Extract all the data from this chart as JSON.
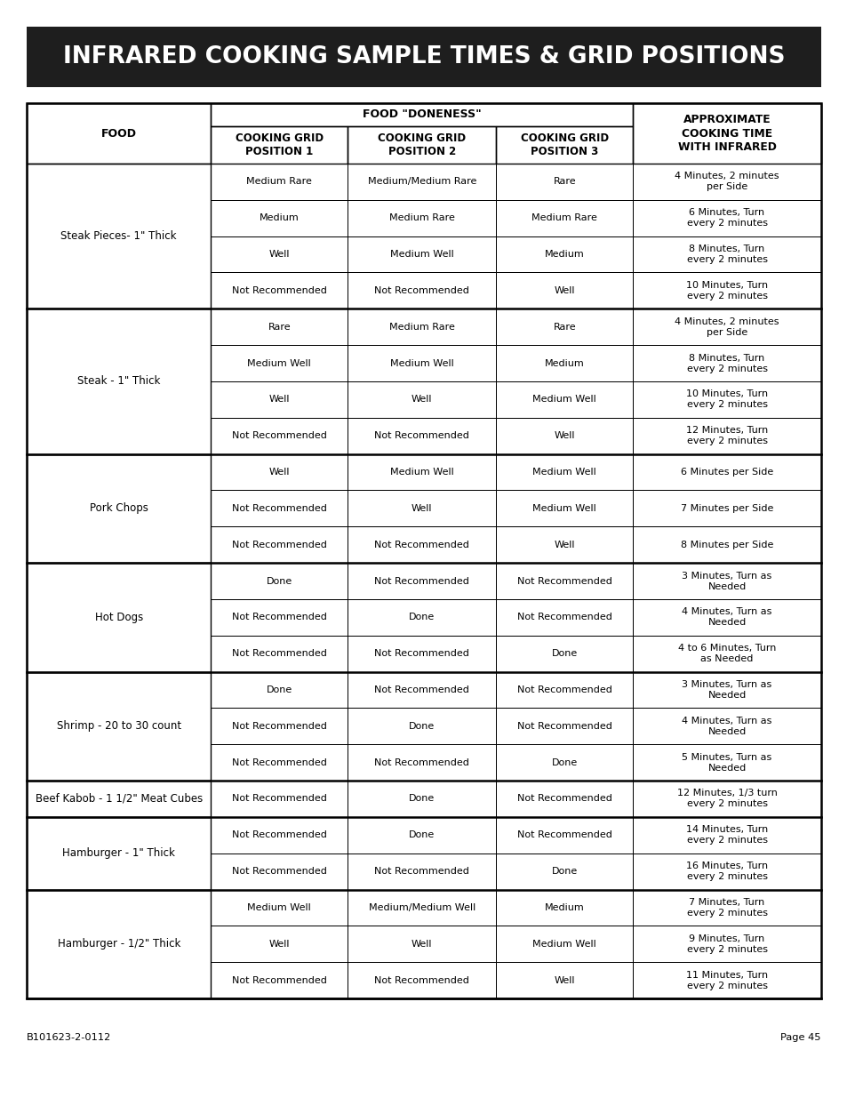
{
  "title": "INFRARED COOKING SAMPLE TIMES & GRID POSITIONS",
  "title_bg": "#1e1e1e",
  "title_color": "#ffffff",
  "header_food": "FOOD",
  "header_doneness": "FOOD \"DONENESS\"",
  "header_approx": "APPROXIMATE\nCOOKING TIME\nWITH INFRARED",
  "col_headers": [
    "COOKING GRID\nPOSITION 1",
    "COOKING GRID\nPOSITION 2",
    "COOKING GRID\nPOSITION 3"
  ],
  "footer_left": "B101623-2-0112",
  "footer_right": "Page 45",
  "groups": [
    {
      "food": "Steak Pieces- 1\" Thick",
      "rows": [
        [
          "Medium Rare",
          "Medium/Medium Rare",
          "Rare",
          "4 Minutes, 2 minutes\nper Side"
        ],
        [
          "Medium",
          "Medium Rare",
          "Medium Rare",
          "6 Minutes, Turn\nevery 2 minutes"
        ],
        [
          "Well",
          "Medium Well",
          "Medium",
          "8 Minutes, Turn\nevery 2 minutes"
        ],
        [
          "Not Recommended",
          "Not Recommended",
          "Well",
          "10 Minutes, Turn\nevery 2 minutes"
        ]
      ]
    },
    {
      "food": "Steak - 1\" Thick",
      "rows": [
        [
          "Rare",
          "Medium Rare",
          "Rare",
          "4 Minutes, 2 minutes\nper Side"
        ],
        [
          "Medium Well",
          "Medium Well",
          "Medium",
          "8 Minutes, Turn\nevery 2 minutes"
        ],
        [
          "Well",
          "Well",
          "Medium Well",
          "10 Minutes, Turn\nevery 2 minutes"
        ],
        [
          "Not Recommended",
          "Not Recommended",
          "Well",
          "12 Minutes, Turn\nevery 2 minutes"
        ]
      ]
    },
    {
      "food": "Pork Chops",
      "rows": [
        [
          "Well",
          "Medium Well",
          "Medium Well",
          "6 Minutes per Side"
        ],
        [
          "Not Recommended",
          "Well",
          "Medium Well",
          "7 Minutes per Side"
        ],
        [
          "Not Recommended",
          "Not Recommended",
          "Well",
          "8 Minutes per Side"
        ]
      ]
    },
    {
      "food": "Hot Dogs",
      "rows": [
        [
          "Done",
          "Not Recommended",
          "Not Recommended",
          "3 Minutes, Turn as\nNeeded"
        ],
        [
          "Not Recommended",
          "Done",
          "Not Recommended",
          "4 Minutes, Turn as\nNeeded"
        ],
        [
          "Not Recommended",
          "Not Recommended",
          "Done",
          "4 to 6 Minutes, Turn\nas Needed"
        ]
      ]
    },
    {
      "food": "Shrimp - 20 to 30 count",
      "rows": [
        [
          "Done",
          "Not Recommended",
          "Not Recommended",
          "3 Minutes, Turn as\nNeeded"
        ],
        [
          "Not Recommended",
          "Done",
          "Not Recommended",
          "4 Minutes, Turn as\nNeeded"
        ],
        [
          "Not Recommended",
          "Not Recommended",
          "Done",
          "5 Minutes, Turn as\nNeeded"
        ]
      ]
    },
    {
      "food": "Beef Kabob - 1 1/2\" Meat Cubes",
      "rows": [
        [
          "Not Recommended",
          "Done",
          "Not Recommended",
          "12 Minutes, 1/3 turn\nevery 2 minutes"
        ]
      ]
    },
    {
      "food": "Hamburger - 1\" Thick",
      "rows": [
        [
          "Not Recommended",
          "Done",
          "Not Recommended",
          "14 Minutes, Turn\nevery 2 minutes"
        ],
        [
          "Not Recommended",
          "Not Recommended",
          "Done",
          "16 Minutes, Turn\nevery 2 minutes"
        ]
      ]
    },
    {
      "food": "Hamburger - 1/2\" Thick",
      "rows": [
        [
          "Medium Well",
          "Medium/Medium Well",
          "Medium",
          "7 Minutes, Turn\nevery 2 minutes"
        ],
        [
          "Well",
          "Well",
          "Medium Well",
          "9 Minutes, Turn\nevery 2 minutes"
        ],
        [
          "Not Recommended",
          "Not Recommended",
          "Well",
          "11 Minutes, Turn\nevery 2 minutes"
        ]
      ]
    }
  ]
}
